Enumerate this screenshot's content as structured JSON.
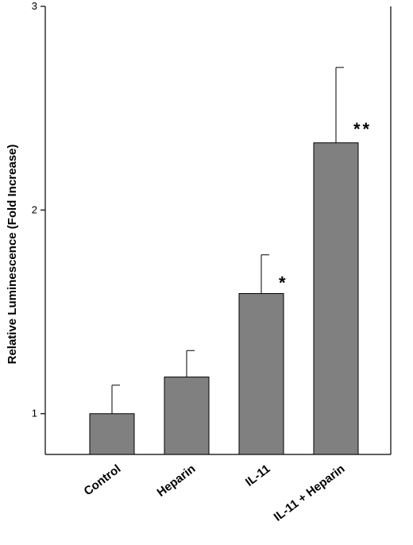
{
  "chart_data": {
    "type": "bar",
    "ylabel": "Relative Luminescence (Fold Increase)",
    "ylim": [
      0.8,
      3
    ],
    "yticks": [
      1,
      2,
      3
    ],
    "categories": [
      "Control",
      "Heparin",
      "IL-11",
      "IL-11 + Heparin"
    ],
    "values": [
      1.0,
      1.18,
      1.59,
      2.33
    ],
    "error_upper": [
      1.14,
      1.31,
      1.78,
      2.7
    ],
    "annotations": [
      "",
      "",
      "*",
      "**"
    ],
    "bar_color": "#808080",
    "grid": false
  }
}
